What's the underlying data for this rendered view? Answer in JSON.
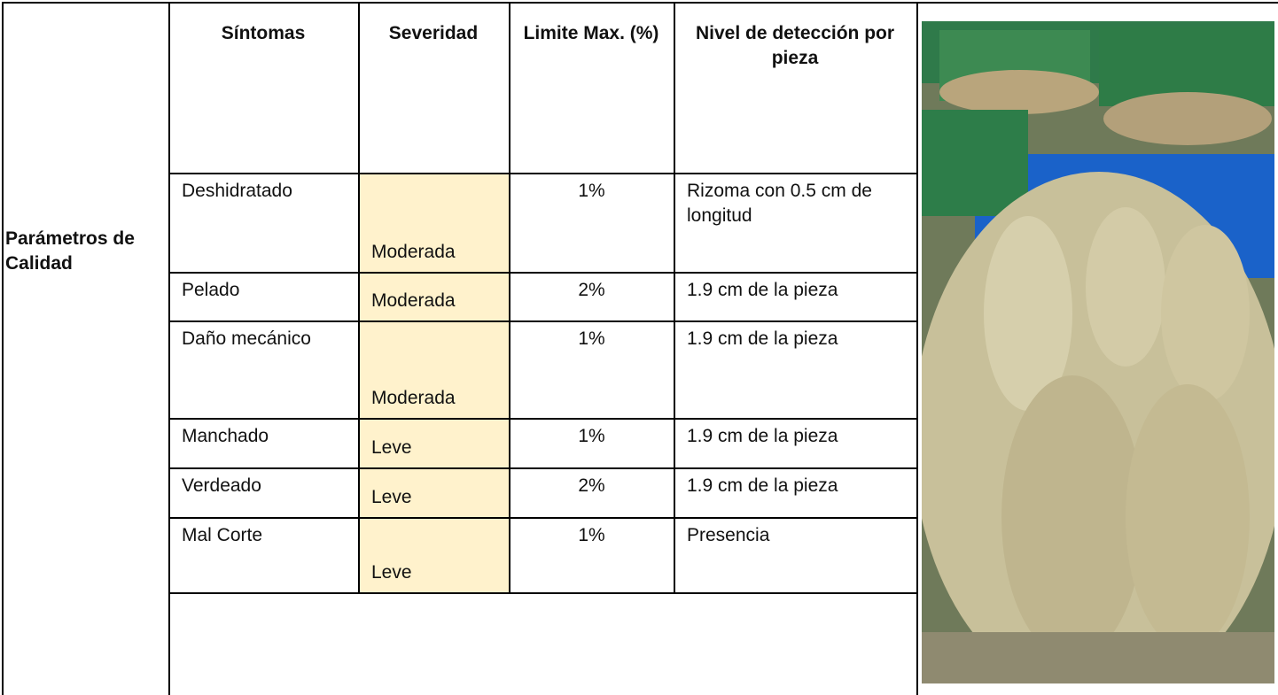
{
  "table": {
    "label": "Parámetros de Calidad",
    "header": [
      "Síntomas",
      "Severidad",
      "Limite Max. (%)",
      "Nivel de detección por pieza"
    ],
    "rows": [
      [
        "Deshidratado",
        "Moderada",
        "1%",
        "Rizoma con 0.5 cm de longitud"
      ],
      [
        "Pelado",
        "Moderada",
        "2%",
        "1.9 cm de la pieza"
      ],
      [
        "Daño mecánico",
        "Moderada",
        "1%",
        "1.9 cm de la pieza"
      ],
      [
        "Manchado",
        "Leve",
        "1%",
        "1.9 cm de la pieza"
      ],
      [
        "Verdeado",
        "Leve",
        "2%",
        "1.9 cm de la pieza"
      ],
      [
        "Mal Corte",
        "Leve",
        "1%",
        "Presencia"
      ]
    ]
  }
}
